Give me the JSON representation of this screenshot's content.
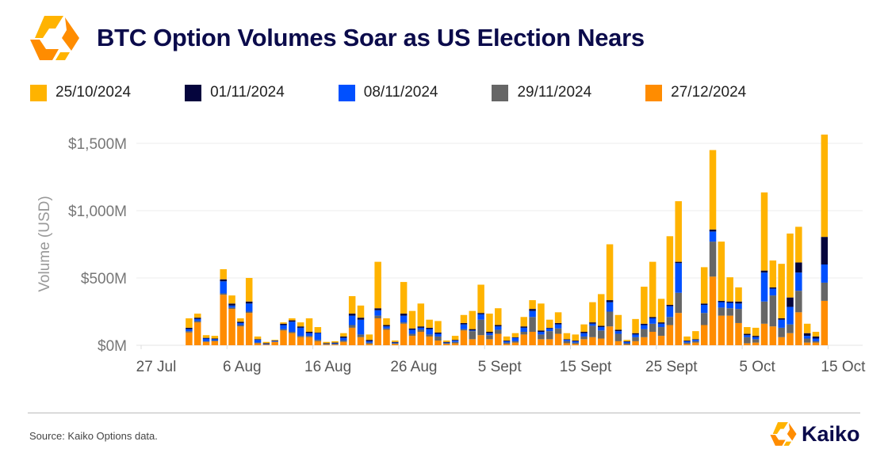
{
  "header": {
    "title": "BTC Option Volumes Soar as US Election Nears",
    "logo": "kaiko-logo-icon"
  },
  "footer": {
    "source": "Source: Kaiko Options data.",
    "brand": "Kaiko"
  },
  "chart_data": {
    "type": "bar",
    "stacked": true,
    "title": "BTC Option Volumes Soar as US Election Nears",
    "ylabel": "Volume (USD)",
    "xlabel": "",
    "ylim": [
      0,
      1600
    ],
    "yticks": [
      {
        "v": 0,
        "label": "$0M"
      },
      {
        "v": 500,
        "label": "$500M"
      },
      {
        "v": 1000,
        "label": "$1,000M"
      },
      {
        "v": 1500,
        "label": "$1,500M"
      }
    ],
    "xticks": [
      {
        "d": "2024-07-27",
        "label": "27 Jul"
      },
      {
        "d": "2024-08-06",
        "label": "6 Aug"
      },
      {
        "d": "2024-08-16",
        "label": "16 Aug"
      },
      {
        "d": "2024-08-26",
        "label": "26 Aug"
      },
      {
        "d": "2024-09-05",
        "label": "5 Sept"
      },
      {
        "d": "2024-09-15",
        "label": "15 Sept"
      },
      {
        "d": "2024-09-25",
        "label": "25 Sept"
      },
      {
        "d": "2024-10-05",
        "label": "5 Oct"
      },
      {
        "d": "2024-10-15",
        "label": "15 Oct"
      }
    ],
    "xlim": [
      "2024-07-27",
      "2024-10-18"
    ],
    "grid": true,
    "legend_position": "top",
    "start_date": "2024-08-01",
    "series": [
      {
        "name": "27/12/2024",
        "color": "#ff8c00",
        "values": [
          95,
          170,
          25,
          30,
          375,
          270,
          140,
          240,
          15,
          5,
          25,
          110,
          90,
          60,
          60,
          30,
          5,
          5,
          25,
          130,
          60,
          10,
          200,
          115,
          10,
          160,
          70,
          100,
          65,
          35,
          10,
          15,
          110,
          45,
          75,
          45,
          85,
          10,
          20,
          80,
          100,
          45,
          45,
          85,
          15,
          10,
          45,
          60,
          50,
          140,
          30,
          5,
          30,
          60,
          100,
          70,
          150,
          240,
          10,
          20,
          150,
          510,
          220,
          220,
          165,
          15,
          20,
          160,
          140,
          60,
          90,
          245,
          20,
          20,
          330
        ]
      },
      {
        "name": "29/11/2024",
        "color": "#666666",
        "values": [
          10,
          10,
          5,
          5,
          10,
          10,
          10,
          10,
          5,
          0,
          2,
          10,
          10,
          10,
          10,
          10,
          3,
          5,
          10,
          20,
          20,
          10,
          20,
          10,
          5,
          10,
          15,
          15,
          15,
          30,
          5,
          10,
          10,
          60,
          115,
          30,
          30,
          10,
          10,
          20,
          110,
          35,
          60,
          40,
          15,
          10,
          20,
          85,
          60,
          110,
          55,
          10,
          30,
          60,
          60,
          65,
          60,
          150,
          10,
          10,
          90,
          260,
          60,
          55,
          105,
          45,
          25,
          165,
          230,
          70,
          65,
          160,
          30,
          10,
          135
        ]
      },
      {
        "name": "08/11/2024",
        "color": "#0050ff",
        "values": [
          15,
          15,
          20,
          10,
          90,
          15,
          15,
          60,
          20,
          5,
          5,
          30,
          75,
          60,
          20,
          50,
          2,
          5,
          20,
          70,
          110,
          10,
          40,
          15,
          5,
          50,
          30,
          15,
          40,
          20,
          5,
          10,
          35,
          5,
          40,
          15,
          25,
          10,
          25,
          30,
          45,
          20,
          20,
          30,
          10,
          10,
          25,
          15,
          25,
          70,
          20,
          10,
          20,
          30,
          40,
          25,
          80,
          220,
          10,
          10,
          60,
          75,
          40,
          40,
          40,
          15,
          15,
          215,
          50,
          60,
          130,
          135,
          20,
          20,
          135
        ]
      },
      {
        "name": "01/11/2024",
        "color": "#05053d",
        "values": [
          10,
          10,
          5,
          5,
          15,
          15,
          10,
          15,
          5,
          5,
          3,
          10,
          10,
          10,
          10,
          5,
          5,
          5,
          10,
          15,
          15,
          10,
          15,
          10,
          5,
          15,
          10,
          10,
          10,
          10,
          5,
          5,
          10,
          10,
          10,
          10,
          10,
          5,
          5,
          10,
          15,
          10,
          5,
          10,
          5,
          5,
          10,
          10,
          10,
          15,
          10,
          5,
          10,
          10,
          10,
          10,
          10,
          10,
          5,
          5,
          10,
          15,
          10,
          10,
          15,
          10,
          10,
          15,
          10,
          10,
          70,
          75,
          20,
          15,
          205
        ]
      },
      {
        "name": "25/10/2024",
        "color": "#ffb300",
        "values": [
          70,
          30,
          20,
          20,
          75,
          60,
          25,
          175,
          20,
          10,
          5,
          10,
          15,
          30,
          100,
          40,
          10,
          10,
          25,
          130,
          90,
          40,
          345,
          50,
          10,
          235,
          130,
          170,
          60,
          85,
          10,
          30,
          60,
          135,
          210,
          135,
          125,
          30,
          30,
          70,
          65,
          200,
          60,
          80,
          45,
          45,
          55,
          150,
          235,
          415,
          110,
          10,
          105,
          275,
          410,
          175,
          510,
          450,
          30,
          60,
          270,
          590,
          440,
          180,
          105,
          50,
          60,
          580,
          200,
          405,
          475,
          265,
          70,
          35,
          760
        ]
      }
    ]
  }
}
